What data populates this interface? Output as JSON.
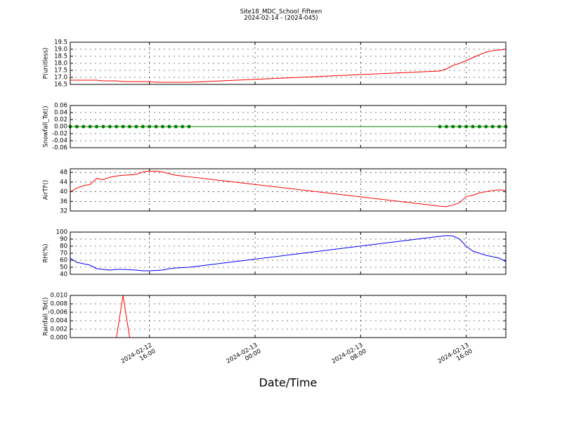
{
  "chart_data": {
    "type": "line",
    "title": "Site18_MDC_School_Fifteen",
    "subtitle": "2024-02-14 - (2024-045)",
    "x_label": "Date/Time",
    "grid": true,
    "x": [
      "2024-02-12 10:00",
      "2024-02-12 10:30",
      "2024-02-12 11:00",
      "2024-02-12 11:30",
      "2024-02-12 12:00",
      "2024-02-12 12:30",
      "2024-02-12 13:00",
      "2024-02-12 13:30",
      "2024-02-12 14:00",
      "2024-02-12 14:30",
      "2024-02-12 15:00",
      "2024-02-12 15:30",
      "2024-02-12 16:00",
      "2024-02-12 16:30",
      "2024-02-12 17:00",
      "2024-02-12 17:30",
      "2024-02-12 18:00",
      "2024-02-12 18:30",
      "2024-02-12 19:00",
      "2024-02-13 14:00",
      "2024-02-13 14:30",
      "2024-02-13 15:00",
      "2024-02-13 15:30",
      "2024-02-13 16:00",
      "2024-02-13 16:30",
      "2024-02-13 17:00",
      "2024-02-13 17:30",
      "2024-02-13 18:00",
      "2024-02-13 18:30",
      "2024-02-13 19:00"
    ],
    "xlim": [
      "2024-02-12 10:00",
      "2024-02-13 19:00"
    ],
    "xticks": [
      {
        "value": "2024-02-12 16:00",
        "label": "2024-02-12\n16:00"
      },
      {
        "value": "2024-02-13 00:00",
        "label": "2024-02-13\n00:00"
      },
      {
        "value": "2024-02-13 08:00",
        "label": "2024-02-13\n08:00"
      },
      {
        "value": "2024-02-13 16:00",
        "label": "2024-02-13\n16:00"
      }
    ],
    "panels": [
      {
        "y_label": "P(unitless)",
        "color": "#ff0000",
        "ylim": [
          16.5,
          19.5
        ],
        "yticks": [
          16.5,
          {
            "value": 17,
            "label": "17.0"
          },
          17.5,
          {
            "value": 18,
            "label": "18.0"
          },
          18.5,
          {
            "value": 19,
            "label": "19.0"
          },
          19.5
        ],
        "values": [
          16.8,
          16.8,
          16.8,
          16.8,
          16.8,
          16.75,
          16.75,
          16.75,
          16.7,
          16.7,
          16.7,
          16.7,
          16.7,
          16.65,
          16.65,
          16.65,
          16.65,
          16.65,
          16.65,
          17.45,
          17.6,
          17.85,
          18.0,
          18.2,
          18.4,
          18.6,
          18.8,
          18.9,
          18.95,
          19.0
        ]
      },
      {
        "y_label": "Snowfall_Tot()",
        "color": "#008000",
        "marker": "o",
        "ylim": [
          -0.06,
          0.06
        ],
        "yticks": [
          -0.06,
          -0.04,
          -0.02,
          {
            "value": 0,
            "label": "0.00"
          },
          0.02,
          0.04,
          0.06
        ],
        "values": [
          0,
          0,
          0,
          0,
          0,
          0,
          0,
          0,
          0,
          0,
          0,
          0,
          0,
          0,
          0,
          0,
          0,
          0,
          0,
          0,
          0,
          0,
          0,
          0,
          0,
          0,
          0,
          0,
          0,
          0
        ]
      },
      {
        "y_label": "AirTF()",
        "color": "#ff0000",
        "ylim": [
          32,
          49.5
        ],
        "yticks": [
          32,
          36,
          40,
          44,
          48
        ],
        "values": [
          40,
          41.5,
          42.5,
          43,
          45.5,
          45,
          46,
          46.5,
          46.8,
          47,
          47.2,
          48.2,
          48.5,
          48.5,
          48.2,
          47.5,
          46.8,
          46.5,
          46.2,
          34,
          33.8,
          34.5,
          35.5,
          38,
          38.5,
          39.5,
          40,
          40.5,
          40.8,
          40.5
        ]
      },
      {
        "y_label": "RH(%)",
        "color": "#0000ff",
        "ylim": [
          40,
          100
        ],
        "yticks": [
          40,
          50,
          60,
          70,
          80,
          90,
          100
        ],
        "values": [
          63,
          57,
          55,
          53,
          48,
          47,
          46,
          47,
          47,
          46.5,
          46,
          45,
          45,
          45.5,
          46,
          48,
          49,
          49.5,
          50,
          94,
          95,
          94.5,
          90,
          80,
          73,
          70,
          67,
          65,
          63,
          58
        ]
      },
      {
        "y_label": "Rainfall_Tot()",
        "color": "#ff0000",
        "ylim": [
          0,
          0.01
        ],
        "yticks": [
          {
            "value": 0,
            "label": "0.000"
          },
          {
            "value": 0.002,
            "label": "0.002"
          },
          {
            "value": 0.004,
            "label": "0.004"
          },
          {
            "value": 0.006,
            "label": "0.006"
          },
          {
            "value": 0.008,
            "label": "0.008"
          },
          {
            "value": 0.01,
            "label": "0.010"
          }
        ],
        "values": [
          0,
          0,
          0,
          0,
          0,
          0,
          0,
          0,
          0.01,
          0,
          0,
          0,
          0,
          0,
          0,
          0,
          0,
          0,
          0,
          0,
          0,
          0,
          0,
          0,
          0,
          0,
          0,
          0,
          0,
          0
        ]
      }
    ]
  }
}
